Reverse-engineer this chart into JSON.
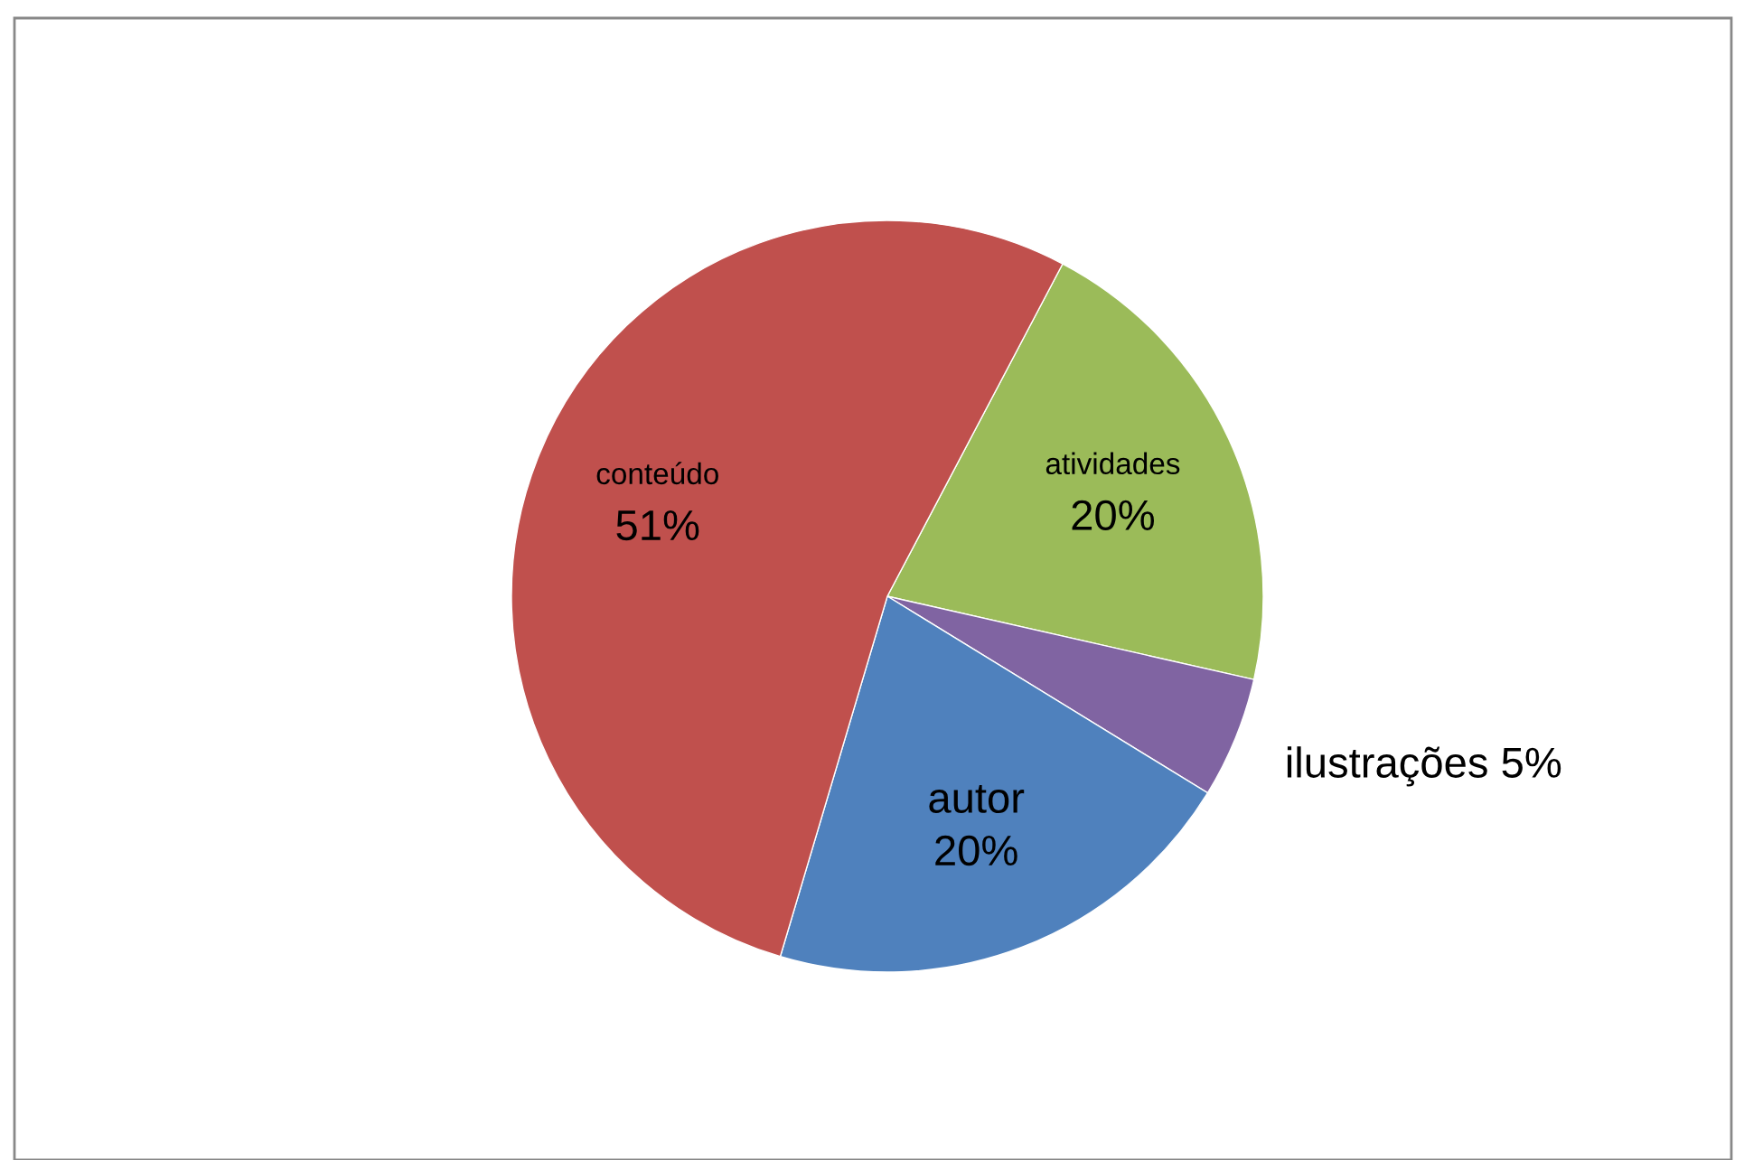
{
  "chart_data": {
    "type": "pie",
    "categories": [
      "atividades",
      "ilustrações",
      "autor",
      "conteúdo"
    ],
    "values": [
      20,
      5,
      20,
      51
    ],
    "colors": [
      "#9bbb59",
      "#8064a2",
      "#4f81bd",
      "#c0504d"
    ],
    "value_labels": [
      "20%",
      "5%",
      "20%",
      "51%"
    ],
    "legend": false
  }
}
